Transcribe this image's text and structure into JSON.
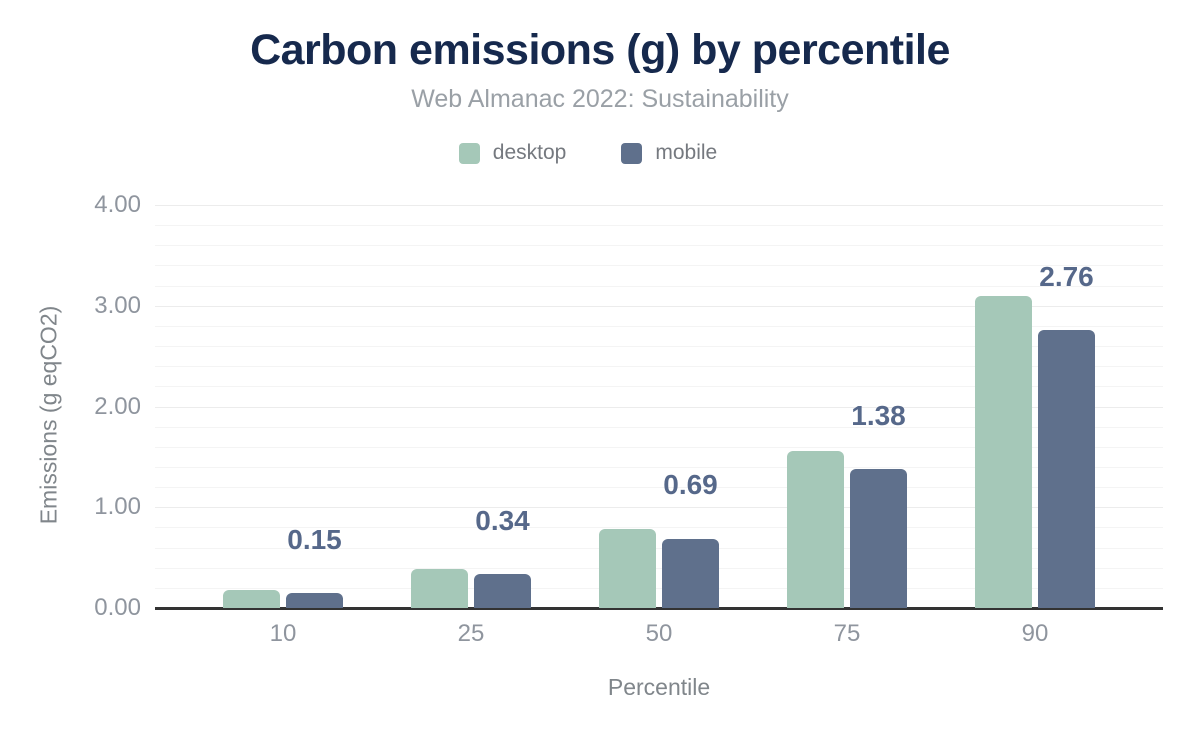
{
  "chart_data": {
    "type": "bar",
    "title": "Carbon emissions (g) by percentile",
    "subtitle": "Web Almanac 2022: Sustainability",
    "xlabel": "Percentile",
    "ylabel": "Emissions (g eqCO2)",
    "categories": [
      "10",
      "25",
      "50",
      "75",
      "90"
    ],
    "series": [
      {
        "name": "desktop",
        "color": "#a5c8b8",
        "values": [
          0.18,
          0.39,
          0.78,
          1.56,
          3.1
        ]
      },
      {
        "name": "mobile",
        "color": "#5f708c",
        "values": [
          0.15,
          0.34,
          0.69,
          1.38,
          2.76
        ]
      }
    ],
    "value_labels": {
      "for_series": "mobile",
      "texts": [
        "0.15",
        "0.34",
        "0.69",
        "1.38",
        "2.76"
      ]
    },
    "ylim": [
      0,
      4
    ],
    "yticks": [
      {
        "value": 0,
        "label": "0.00"
      },
      {
        "value": 1,
        "label": "1.00"
      },
      {
        "value": 2,
        "label": "2.00"
      },
      {
        "value": 3,
        "label": "3.00"
      },
      {
        "value": 4,
        "label": "4.00"
      }
    ],
    "minor_tick_step": 0.2,
    "grid": true,
    "legend_position": "top"
  },
  "colors": {
    "title": "#16294d",
    "subtitle": "#9aa0a6",
    "legend_text": "#75797f",
    "tick_label": "#8f959e",
    "axis_title": "#80868b",
    "grid_minor": "#f4f4f4",
    "grid_major": "#ececec",
    "baseline": "#333333",
    "value_label": "#56688a"
  }
}
